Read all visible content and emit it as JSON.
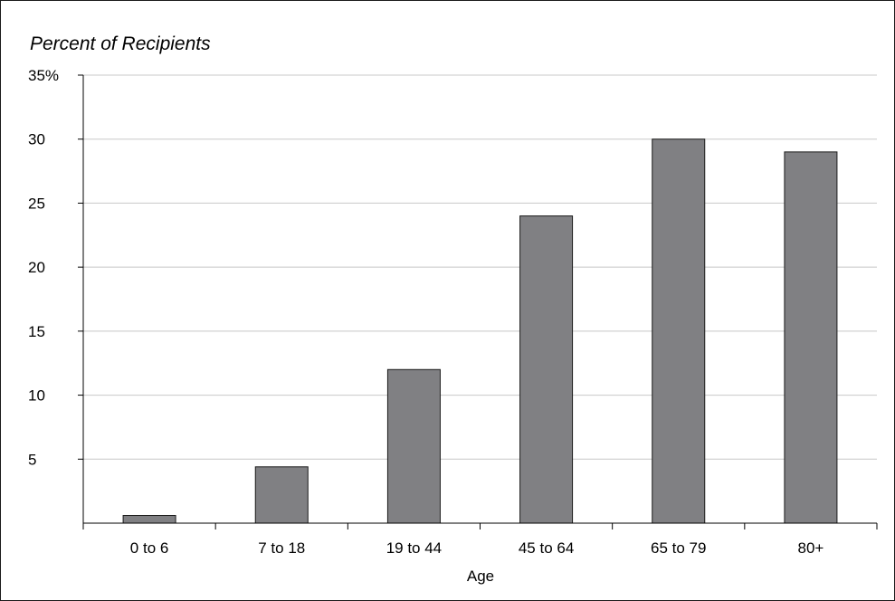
{
  "chart_data": {
    "type": "bar",
    "title": "Percent of Recipients",
    "xlabel": "Age",
    "ylabel": "",
    "categories": [
      "0 to 6",
      "7 to 18",
      "19 to 44",
      "45 to 64",
      "65 to 79",
      "80+"
    ],
    "values": [
      0.6,
      4.4,
      12,
      24,
      30,
      29
    ],
    "ylim": [
      0,
      35
    ],
    "yticks": [
      5,
      10,
      15,
      20,
      25,
      30,
      35
    ],
    "ytick_labels": [
      "5",
      "10",
      "15",
      "20",
      "25",
      "30",
      "35%"
    ],
    "grid": true,
    "legend": "none",
    "colors": {
      "bar_fill": "#808083",
      "bar_stroke": "#1a1a1a",
      "grid": "#c8c8c8",
      "axis": "#000000"
    }
  }
}
